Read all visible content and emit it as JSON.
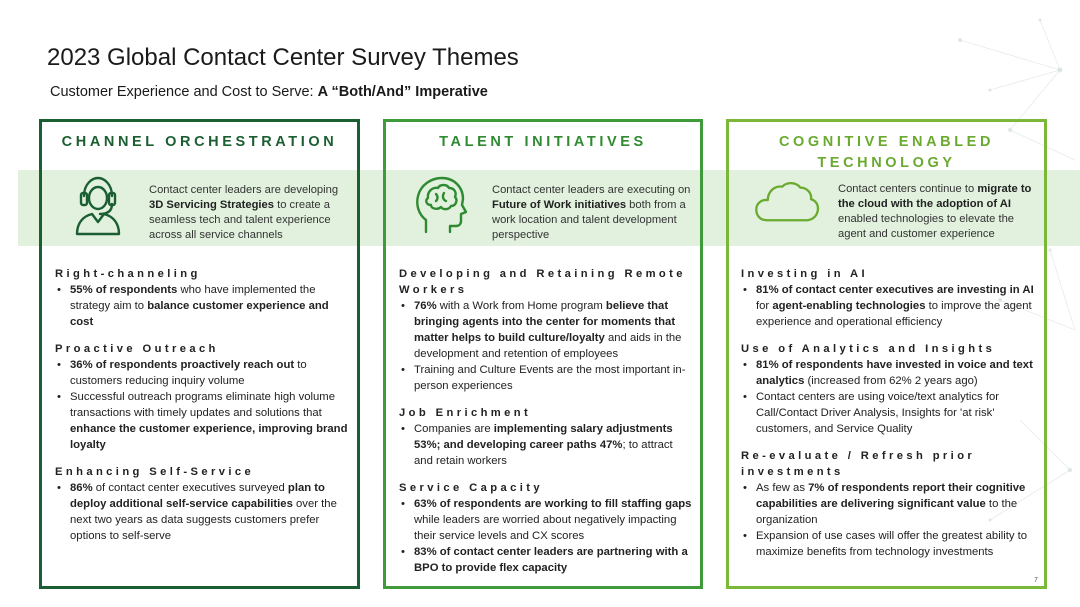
{
  "title": "2023 Global Contact Center Survey Themes",
  "subtitle": {
    "prefix": "Customer Experience and Cost to Serve: ",
    "bold": "A “Both/And” Imperative"
  },
  "colors": {
    "col1": "#1b5e32",
    "col2": "#3f9a3a",
    "col3": "#7bb83a",
    "band": "#d4ebcf"
  },
  "columns": [
    {
      "heading": "CHANNEL ORCHESTRATION",
      "icon": "headset-agent-icon",
      "intro": [
        {
          "t": "Contact center leaders are developing ",
          "b": false
        },
        {
          "t": "3D Servicing Strategies",
          "b": true
        },
        {
          "t": " to create a seamless tech and talent experience across all service channels",
          "b": false
        }
      ],
      "sections": [
        {
          "title": "Right-channeling",
          "bullets": [
            [
              {
                "t": "55% of respondents",
                "b": true
              },
              {
                "t": " who have implemented the strategy aim to ",
                "b": false
              },
              {
                "t": "balance  customer  experience and cost",
                "b": true
              }
            ]
          ]
        },
        {
          "title": "Proactive Outreach",
          "bullets": [
            [
              {
                "t": "36% of respondents proactively reach out",
                "b": true
              },
              {
                "t": " to customers reducing inquiry volume",
                "b": false
              }
            ],
            [
              {
                "t": "Successful outreach programs eliminate high volume transactions with timely updates and solutions that ",
                "b": false
              },
              {
                "t": "enhance the customer experience, improving brand loyalty",
                "b": true
              }
            ]
          ]
        },
        {
          "title": "Enhancing Self-Service",
          "bullets": [
            [
              {
                "t": "86%",
                "b": true
              },
              {
                "t": " of contact center executives surveyed ",
                "b": false
              },
              {
                "t": "plan to deploy additional self-service capabilities",
                "b": true
              },
              {
                "t": " over the next two years as data suggests customers prefer options to self-serve",
                "b": false
              }
            ]
          ]
        }
      ]
    },
    {
      "heading": "TALENT INITIATIVES",
      "icon": "brain-head-icon",
      "intro": [
        {
          "t": "Contact center leaders are executing on ",
          "b": false
        },
        {
          "t": "Future of Work initiatives",
          "b": true
        },
        {
          "t": " both from a work location and talent development perspective",
          "b": false
        }
      ],
      "sections": [
        {
          "title": "Developing and Retaining Remote Workers",
          "bullets": [
            [
              {
                "t": "76%",
                "b": true
              },
              {
                "t": " with a Work from Home program ",
                "b": false
              },
              {
                "t": "believe that bringing agents into the center for moments that matter helps to build culture/loyalty",
                "b": true
              },
              {
                "t": " and aids in the development and retention of employees",
                "b": false
              }
            ],
            [
              {
                "t": "Training and Culture Events are the most important in-person  experiences",
                "b": false
              }
            ]
          ]
        },
        {
          "title": "Job Enrichment",
          "bullets": [
            [
              {
                "t": "Companies are ",
                "b": false
              },
              {
                "t": "implementing salary adjustments 53%; and developing career paths 47%",
                "b": true
              },
              {
                "t": "; to attract and retain workers",
                "b": false
              }
            ]
          ]
        },
        {
          "title": "Service Capacity",
          "bullets": [
            [
              {
                "t": "63% of respondents are working to fill staffing gaps",
                "b": true
              },
              {
                "t": " while leaders are worried about negatively impacting their service levels and CX scores",
                "b": false
              }
            ],
            [
              {
                "t": "83% of contact center leaders are partnering with a BPO to provide flex capacity",
                "b": true
              }
            ]
          ]
        }
      ]
    },
    {
      "heading": "COGNITIVE ENABLED TECHNOLOGY",
      "icon": "cloud-icon",
      "intro": [
        {
          "t": "Contact centers continue to ",
          "b": false
        },
        {
          "t": "migrate to the cloud with the adoption of AI",
          "b": true
        },
        {
          "t": " enabled technologies to elevate the agent and customer experience",
          "b": false
        }
      ],
      "sections": [
        {
          "title": "Investing in AI",
          "bullets": [
            [
              {
                "t": "81% of contact center executives are investing in AI",
                "b": true
              },
              {
                "t": " for ",
                "b": false
              },
              {
                "t": "agent-enabling technologies",
                "b": true
              },
              {
                "t": " to improve the agent experience and operational efficiency",
                "b": false
              }
            ]
          ]
        },
        {
          "title": "Use of Analytics and Insights",
          "bullets": [
            [
              {
                "t": "81% of respondents have invested in voice and text analytics",
                "b": true
              },
              {
                "t": " (increased from 62% 2 years ago)",
                "b": false
              }
            ],
            [
              {
                "t": "Contact centers are using voice/text analytics for Call/Contact Driver Analysis, Insights for 'at risk' customers, and Service Quality",
                "b": false
              }
            ]
          ]
        },
        {
          "title": "Re-evaluate / Refresh prior investments",
          "bullets": [
            [
              {
                "t": "As few as ",
                "b": false
              },
              {
                "t": "7% of respondents report their cognitive capabilities are delivering significant value",
                "b": true
              },
              {
                "t": " to the organization",
                "b": false
              }
            ],
            [
              {
                "t": " Expansion of use cases will offer the greatest ability to maximize benefits from technology investments",
                "b": false
              }
            ]
          ]
        }
      ]
    }
  ],
  "page_number": "7"
}
